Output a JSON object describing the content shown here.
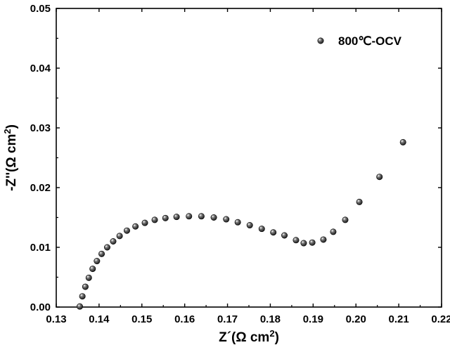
{
  "chart_data": {
    "type": "scatter",
    "xlabel": {
      "text": "Z´(Ω cm",
      "sup": "2",
      "close": ")"
    },
    "ylabel": {
      "text": "-Z''(Ω cm",
      "sup": "2",
      "close": ")"
    },
    "xlim": [
      0.13,
      0.22
    ],
    "ylim": [
      0,
      0.05
    ],
    "xticks": [
      "0.13",
      "0.14",
      "0.15",
      "0.16",
      "0.17",
      "0.18",
      "0.19",
      "0.20",
      "0.21",
      "0.22"
    ],
    "yticks": [
      "0.00",
      "0.01",
      "0.02",
      "0.03",
      "0.04",
      "0.05"
    ],
    "legend_position": "top-right",
    "grid": false,
    "marker_color": "#1a1a1a",
    "series": [
      {
        "name": "800℃-OCV",
        "x": [
          0.1355,
          0.1361,
          0.1368,
          0.1376,
          0.1385,
          0.1395,
          0.1406,
          0.1419,
          0.1433,
          0.1448,
          0.1465,
          0.1485,
          0.1507,
          0.153,
          0.1555,
          0.1581,
          0.161,
          0.1639,
          0.1668,
          0.1697,
          0.1724,
          0.1752,
          0.178,
          0.1807,
          0.1833,
          0.186,
          0.1878,
          0.1898,
          0.1924,
          0.1947,
          0.1975,
          0.2008,
          0.2055,
          0.211
        ],
        "y": [
          0.0001,
          0.0018,
          0.0034,
          0.0049,
          0.0064,
          0.0077,
          0.0089,
          0.01,
          0.011,
          0.0119,
          0.0128,
          0.0135,
          0.0141,
          0.0146,
          0.0149,
          0.0151,
          0.0152,
          0.0152,
          0.015,
          0.0147,
          0.0142,
          0.0137,
          0.0131,
          0.0125,
          0.012,
          0.0112,
          0.0107,
          0.0108,
          0.0113,
          0.0126,
          0.0146,
          0.0176,
          0.0218,
          0.0276
        ]
      }
    ]
  }
}
